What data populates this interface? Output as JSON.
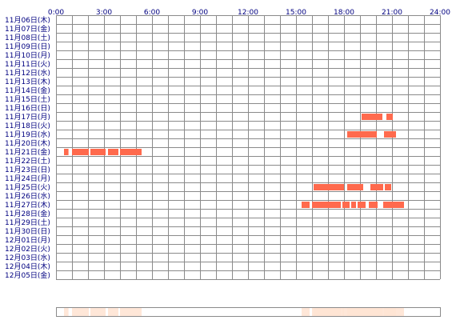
{
  "chart_data": {
    "type": "timeline",
    "title": "",
    "xlabel": "",
    "ylabel": "",
    "xlim": [
      0,
      24
    ],
    "x_ticks": [
      "0:00",
      "3:00",
      "6:00",
      "9:00",
      "12:00",
      "15:00",
      "18:00",
      "21:00",
      "24:00"
    ],
    "rows": [
      "11月06日(木)",
      "11月07日(金)",
      "11月08日(土)",
      "11月09日(日)",
      "11月10日(月)",
      "11月11日(火)",
      "11月12日(水)",
      "11月13日(木)",
      "11月14日(金)",
      "11月15日(土)",
      "11月16日(日)",
      "11月17日(月)",
      "11月18日(火)",
      "11月19日(水)",
      "11月20日(木)",
      "11月21日(金)",
      "11月22日(土)",
      "11月23日(日)",
      "11月24日(月)",
      "11月25日(火)",
      "11月26日(水)",
      "11月27日(木)",
      "11月28日(金)",
      "11月29日(土)",
      "11月30日(日)",
      "12月01日(月)",
      "12月02日(火)",
      "12月03日(水)",
      "12月04日(木)",
      "12月05日(金)"
    ],
    "intervals": [
      {
        "row": 11,
        "start": 19.1,
        "end": 20.4
      },
      {
        "row": 11,
        "start": 20.65,
        "end": 21.05
      },
      {
        "row": 13,
        "start": 18.2,
        "end": 20.05
      },
      {
        "row": 13,
        "start": 20.5,
        "end": 21.25
      },
      {
        "row": 15,
        "start": 0.5,
        "end": 0.78
      },
      {
        "row": 15,
        "start": 1.0,
        "end": 2.05
      },
      {
        "row": 15,
        "start": 2.15,
        "end": 3.1
      },
      {
        "row": 15,
        "start": 3.25,
        "end": 3.9
      },
      {
        "row": 15,
        "start": 4.0,
        "end": 5.35
      },
      {
        "row": 19,
        "start": 16.1,
        "end": 18.0
      },
      {
        "row": 19,
        "start": 18.2,
        "end": 19.2
      },
      {
        "row": 19,
        "start": 19.65,
        "end": 20.45
      },
      {
        "row": 19,
        "start": 20.55,
        "end": 20.95
      },
      {
        "row": 21,
        "start": 15.35,
        "end": 15.85
      },
      {
        "row": 21,
        "start": 16.0,
        "end": 17.8
      },
      {
        "row": 21,
        "start": 17.9,
        "end": 18.35
      },
      {
        "row": 21,
        "start": 18.45,
        "end": 18.75
      },
      {
        "row": 21,
        "start": 18.85,
        "end": 19.35
      },
      {
        "row": 21,
        "start": 19.55,
        "end": 20.1
      },
      {
        "row": 21,
        "start": 20.45,
        "end": 21.75
      }
    ],
    "grid": true,
    "colors": {
      "bar": "#ff6a4d",
      "grid": "#8a8a8a",
      "text": "#000080",
      "summary_base": "#ffe4d4"
    }
  }
}
